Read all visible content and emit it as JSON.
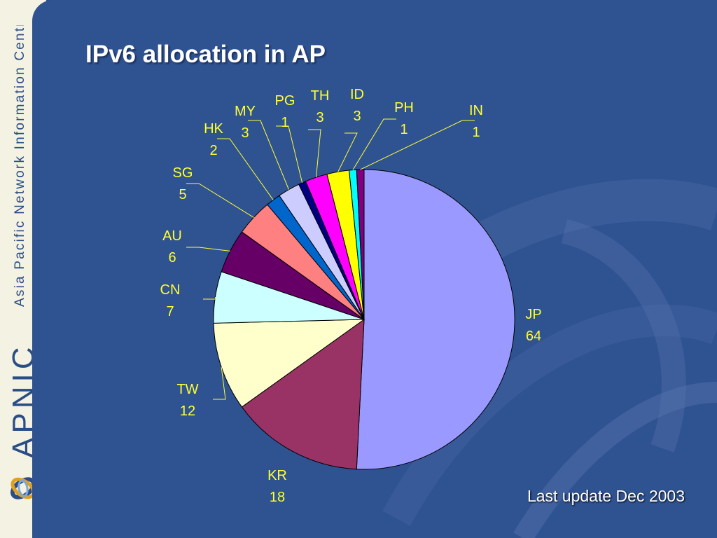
{
  "sidebar": {
    "org_name": "Asia Pacific Network Information Centre",
    "brand": "APNIC",
    "logo_icon": "apnic-swirl-logo"
  },
  "slide": {
    "title": "IPv6 allocation in AP",
    "note": "Last update Dec 2003"
  },
  "colors": {
    "background": "#2f5291",
    "label": "#ffff33",
    "title": "#ffffff"
  },
  "chart_data": {
    "type": "pie",
    "title": "IPv6 allocation in AP",
    "start_angle_deg": 0,
    "direction": "clockwise",
    "slices": [
      {
        "label": "JP",
        "value": 64,
        "color": "#9999ff"
      },
      {
        "label": "KR",
        "value": 18,
        "color": "#993366"
      },
      {
        "label": "TW",
        "value": 12,
        "color": "#ffffcc"
      },
      {
        "label": "CN",
        "value": 7,
        "color": "#ccffff"
      },
      {
        "label": "AU",
        "value": 6,
        "color": "#660066"
      },
      {
        "label": "SG",
        "value": 5,
        "color": "#ff8080"
      },
      {
        "label": "HK",
        "value": 2,
        "color": "#0066cc"
      },
      {
        "label": "MY",
        "value": 3,
        "color": "#ccccff"
      },
      {
        "label": "PG",
        "value": 1,
        "color": "#000080"
      },
      {
        "label": "TH",
        "value": 3,
        "color": "#ff00ff"
      },
      {
        "label": "ID",
        "value": 3,
        "color": "#ffff00"
      },
      {
        "label": "PH",
        "value": 1,
        "color": "#00ffff"
      },
      {
        "label": "IN",
        "value": 1,
        "color": "#800080"
      }
    ]
  }
}
